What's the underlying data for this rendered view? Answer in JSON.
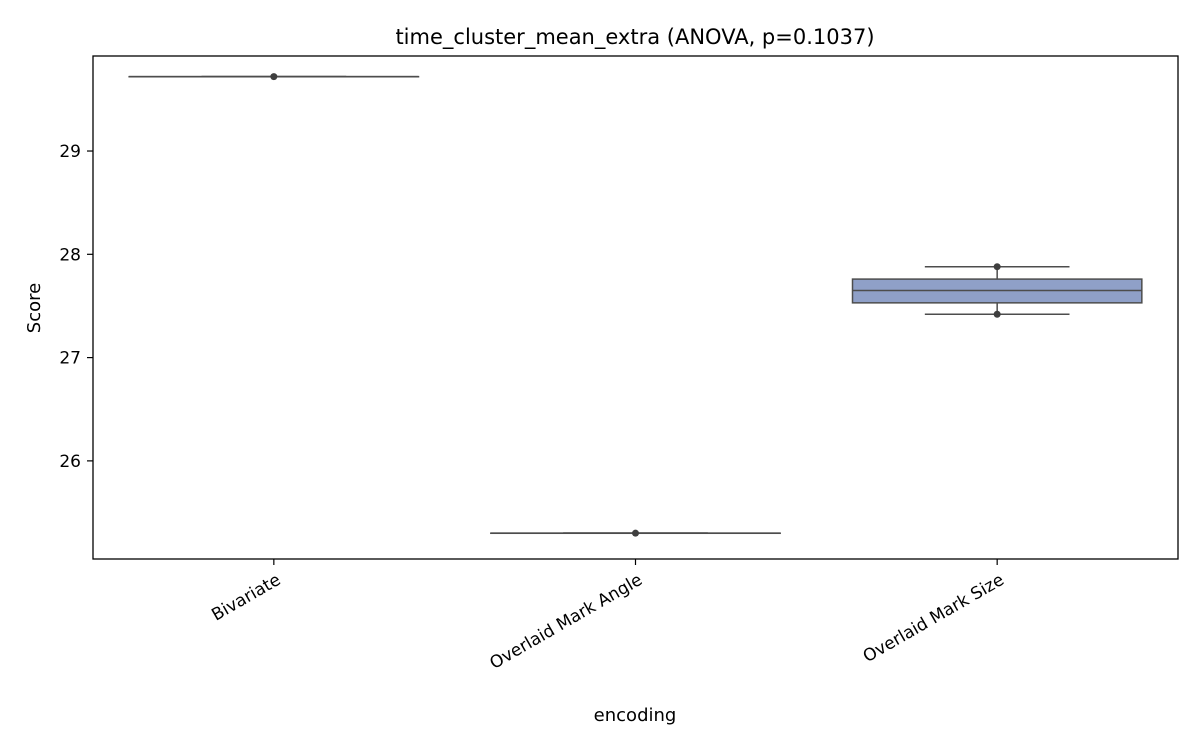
{
  "chart_data": {
    "type": "box",
    "title": "time_cluster_mean_extra (ANOVA, p=0.1037)",
    "xlabel": "encoding",
    "ylabel": "Score",
    "categories": [
      "Bivariate",
      "Overlaid Mark Angle",
      "Overlaid Mark Size"
    ],
    "ylim": [
      25.05,
      29.92
    ],
    "yticks": [
      26,
      27,
      28,
      29
    ],
    "ytick_labels": [
      "26",
      "27",
      "28",
      "29"
    ],
    "xtick_rotation_deg": -30,
    "grid": false,
    "box_color": "#8fa0c8",
    "line_color": "#4d4d4d",
    "point_color": "#3f3f3f",
    "boxes": [
      {
        "category": "Bivariate",
        "whisker_low": 29.72,
        "q1": 29.72,
        "median": 29.72,
        "q3": 29.72,
        "whisker_high": 29.72,
        "points": [
          29.72
        ]
      },
      {
        "category": "Overlaid Mark Angle",
        "whisker_low": 25.3,
        "q1": 25.3,
        "median": 25.3,
        "q3": 25.3,
        "whisker_high": 25.3,
        "points": [
          25.3
        ]
      },
      {
        "category": "Overlaid Mark Size",
        "whisker_low": 27.42,
        "q1": 27.53,
        "median": 27.65,
        "q3": 27.76,
        "whisker_high": 27.88,
        "points": [
          27.88,
          27.42
        ]
      }
    ]
  }
}
